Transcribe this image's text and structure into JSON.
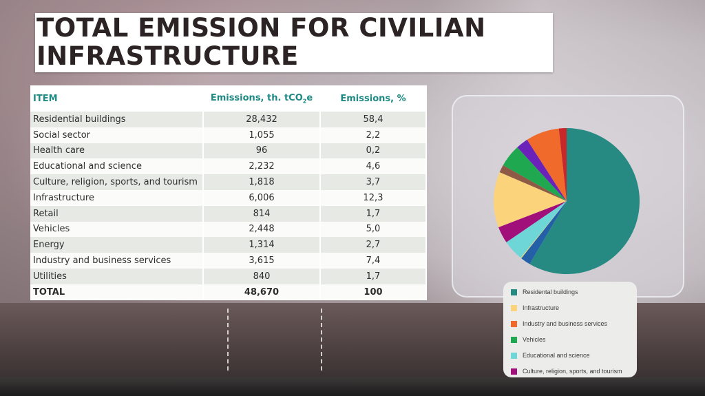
{
  "slide": {
    "title_line1": "TOTAL EMISSION FOR CIVILIAN",
    "title_line2": "INFRASTRUCTURE"
  },
  "table": {
    "headers": {
      "item": "ITEM",
      "emissions_abs": "Emissions, th. tCO",
      "emissions_abs_sub": "2",
      "emissions_abs_suffix": "e",
      "emissions_pct": "Emissions, %"
    },
    "rows": [
      {
        "item": "Residential buildings",
        "abs": "28,432",
        "pct": "58,4"
      },
      {
        "item": "Social sector",
        "abs": "1,055",
        "pct": "2,2"
      },
      {
        "item": "Health care",
        "abs": "96",
        "pct": "0,2"
      },
      {
        "item": "Educational and science",
        "abs": "2,232",
        "pct": "4,6"
      },
      {
        "item": "Culture, religion, sports, and tourism",
        "abs": "1,818",
        "pct": "3,7"
      },
      {
        "item": "Infrastructure",
        "abs": "6,006",
        "pct": "12,3"
      },
      {
        "item": "Retail",
        "abs": "814",
        "pct": "1,7"
      },
      {
        "item": "Vehicles",
        "abs": "2,448",
        "pct": "5,0"
      },
      {
        "item": "Energy",
        "abs": "1,314",
        "pct": "2,7"
      },
      {
        "item": "Industry and business services",
        "abs": "3,615",
        "pct": "7,4"
      },
      {
        "item": "Utilities",
        "abs": "840",
        "pct": "1,7"
      }
    ],
    "total": {
      "item": "TOTAL",
      "abs": "48,670",
      "pct": "100"
    }
  },
  "chart_data": {
    "type": "pie",
    "title": "",
    "start": "top",
    "direction": "clockwise",
    "slices": [
      {
        "name": "Residental buildings",
        "value": 58.4,
        "color": "#268a82"
      },
      {
        "name": "Social sector",
        "value": 2.2,
        "color": "#2360a8"
      },
      {
        "name": "Health care",
        "value": 0.2,
        "color": "#e6d870"
      },
      {
        "name": "Educational and science",
        "value": 4.6,
        "color": "#6fd6d8"
      },
      {
        "name": "Culture, religion, sports, and tourism",
        "value": 3.7,
        "color": "#a1107a"
      },
      {
        "name": "Infrastructure",
        "value": 12.3,
        "color": "#fbd37a"
      },
      {
        "name": "Retail",
        "value": 1.7,
        "color": "#8e5a46"
      },
      {
        "name": "Vehicles",
        "value": 5.0,
        "color": "#1fa84f"
      },
      {
        "name": "Energy",
        "value": 2.7,
        "color": "#6a22b8"
      },
      {
        "name": "Industry and business services",
        "value": 7.4,
        "color": "#f06a2c"
      },
      {
        "name": "Utilities",
        "value": 1.7,
        "color": "#c8282a"
      }
    ],
    "legend": {
      "placement": "bottom",
      "entries": [
        {
          "label": "Residental buildings",
          "color": "#268a82"
        },
        {
          "label": "Infrastructure",
          "color": "#fbd37a"
        },
        {
          "label": "Industry and business services",
          "color": "#f06a2c"
        },
        {
          "label": "Vehicles",
          "color": "#1fa84f"
        },
        {
          "label": "Educational and science",
          "color": "#6fd6d8"
        },
        {
          "label": "Culture, religion, sports, and tourism",
          "color": "#a1107a"
        }
      ]
    }
  }
}
